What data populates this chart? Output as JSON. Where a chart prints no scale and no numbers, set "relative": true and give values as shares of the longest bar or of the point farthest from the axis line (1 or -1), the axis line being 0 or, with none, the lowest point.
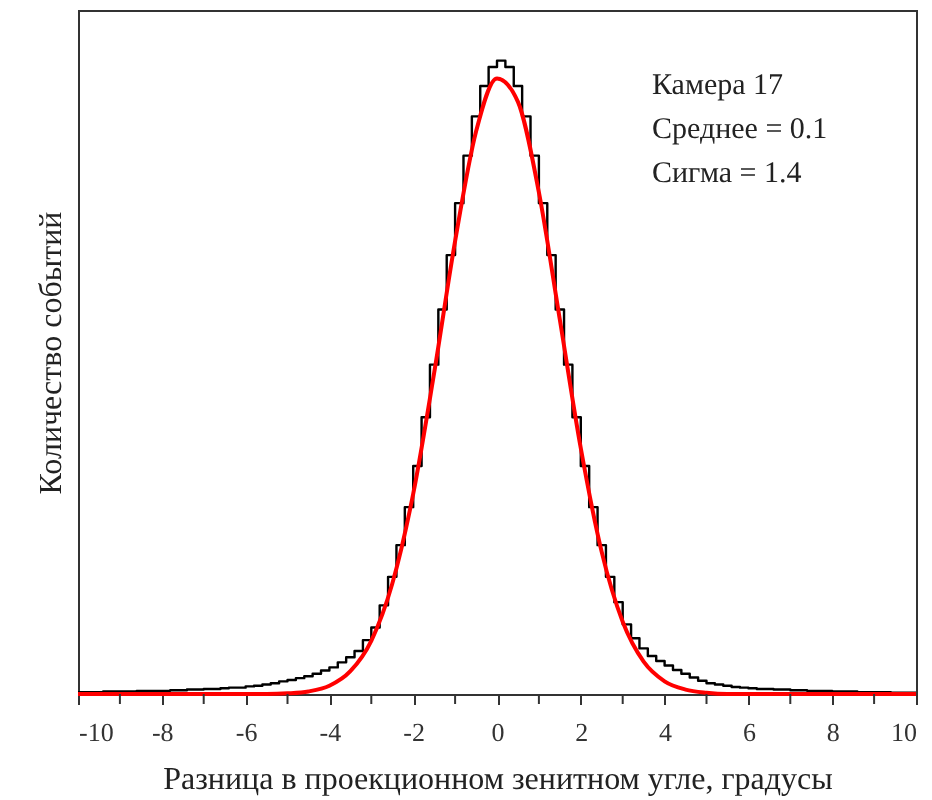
{
  "chart_data": {
    "type": "histogram",
    "relative": true,
    "xlabel": "Разница в проекционном зенитном угле, градусы",
    "ylabel": "Количество событий",
    "annotations": [
      "Камера 17",
      "Среднее = 0.1",
      "Сигма = 1.4"
    ],
    "xlim": [
      -10,
      10
    ],
    "xticks": [
      -10,
      {
        "value": -9,
        "label": null
      },
      -8,
      {
        "value": -7,
        "label": null
      },
      -6,
      {
        "value": -5,
        "label": null
      },
      -4,
      {
        "value": -3,
        "label": null
      },
      -2,
      {
        "value": -1,
        "label": null
      },
      0,
      {
        "value": 1,
        "label": null
      },
      2,
      {
        "value": 3,
        "label": null
      },
      4,
      {
        "value": 5,
        "label": null
      },
      6,
      {
        "value": 7,
        "label": null
      },
      8,
      {
        "value": 9,
        "label": null
      },
      10
    ],
    "bins": [
      -10,
      -9.8,
      -9.6,
      -9.4,
      -9.2,
      -9,
      -8.8,
      -8.6,
      -8.4,
      -8.2,
      -8,
      -7.8,
      -7.6,
      -7.4,
      -7.2,
      -7,
      -6.8,
      -6.6,
      -6.4,
      -6.2,
      -6,
      -5.8,
      -5.6,
      -5.4,
      -5.2,
      -5,
      -4.8,
      -4.6,
      -4.4,
      -4.2,
      -4,
      -3.8,
      -3.6,
      -3.4,
      -3.2,
      -3,
      -2.8,
      -2.6,
      -2.4,
      -2.2,
      -2,
      -1.8,
      -1.6,
      -1.4,
      -1.2,
      -1,
      -0.8,
      -0.6,
      -0.4,
      -0.2,
      0,
      0.2,
      0.4,
      0.6,
      0.8,
      1,
      1.2,
      1.4,
      1.6,
      1.8,
      2,
      2.2,
      2.4,
      2.6,
      2.8,
      3,
      3.2,
      3.4,
      3.6,
      3.8,
      4,
      4.2,
      4.4,
      4.6,
      4.8,
      5,
      5.2,
      5.4,
      5.6,
      5.8,
      6,
      6.2,
      6.4,
      6.6,
      6.8,
      7,
      7.2,
      7.4,
      7.6,
      7.8,
      8,
      8.2,
      8.4,
      8.6,
      8.8,
      9,
      9.2,
      9.4,
      9.6,
      9.8,
      10
    ],
    "values": [
      0.003,
      0.003,
      0.003,
      0.004,
      0.004,
      0.004,
      0.004,
      0.005,
      0.005,
      0.005,
      0.005,
      0.006,
      0.006,
      0.007,
      0.007,
      0.008,
      0.008,
      0.009,
      0.01,
      0.01,
      0.012,
      0.013,
      0.015,
      0.017,
      0.02,
      0.022,
      0.025,
      0.028,
      0.032,
      0.037,
      0.042,
      0.05,
      0.058,
      0.068,
      0.085,
      0.105,
      0.14,
      0.185,
      0.235,
      0.295,
      0.36,
      0.437,
      0.52,
      0.607,
      0.693,
      0.775,
      0.85,
      0.912,
      0.96,
      0.99,
      1.0,
      0.99,
      0.96,
      0.912,
      0.85,
      0.775,
      0.693,
      0.607,
      0.52,
      0.437,
      0.36,
      0.295,
      0.235,
      0.185,
      0.145,
      0.11,
      0.088,
      0.072,
      0.06,
      0.052,
      0.045,
      0.038,
      0.032,
      0.026,
      0.021,
      0.017,
      0.015,
      0.013,
      0.011,
      0.01,
      0.009,
      0.008,
      0.008,
      0.007,
      0.007,
      0.006,
      0.006,
      0.005,
      0.005,
      0.005,
      0.004,
      0.004,
      0.004,
      0.003,
      0.003,
      0.003,
      0.003,
      0.002,
      0.002,
      0.002
    ],
    "color": "#000000",
    "series": [
      {
        "type": "line",
        "color": "#ff0000",
        "x": [
          -10,
          -9.5,
          -9,
          -8.5,
          -8,
          -7.5,
          -7,
          -6.5,
          -6,
          -5.5,
          -5,
          -4.5,
          -4,
          -3.5,
          -3,
          -2.5,
          -2,
          -1.5,
          -1,
          -0.5,
          0,
          0.5,
          1,
          1.5,
          2,
          2.5,
          3,
          3.5,
          4,
          4.5,
          5,
          5.5,
          6,
          6.5,
          7,
          7.5,
          8,
          8.5,
          9,
          9.5,
          10
        ],
        "values": [
          0,
          0,
          0,
          0,
          0,
          0,
          0,
          0,
          0,
          0,
          0.001,
          0.004,
          0.013,
          0.036,
          0.084,
          0.174,
          0.316,
          0.507,
          0.715,
          0.888,
          0.972,
          0.935,
          0.792,
          0.591,
          0.388,
          0.224,
          0.114,
          0.051,
          0.02,
          0.007,
          0.002,
          0,
          0,
          0,
          0,
          0,
          0,
          0,
          0,
          0,
          0
        ]
      }
    ],
    "grid": false
  }
}
